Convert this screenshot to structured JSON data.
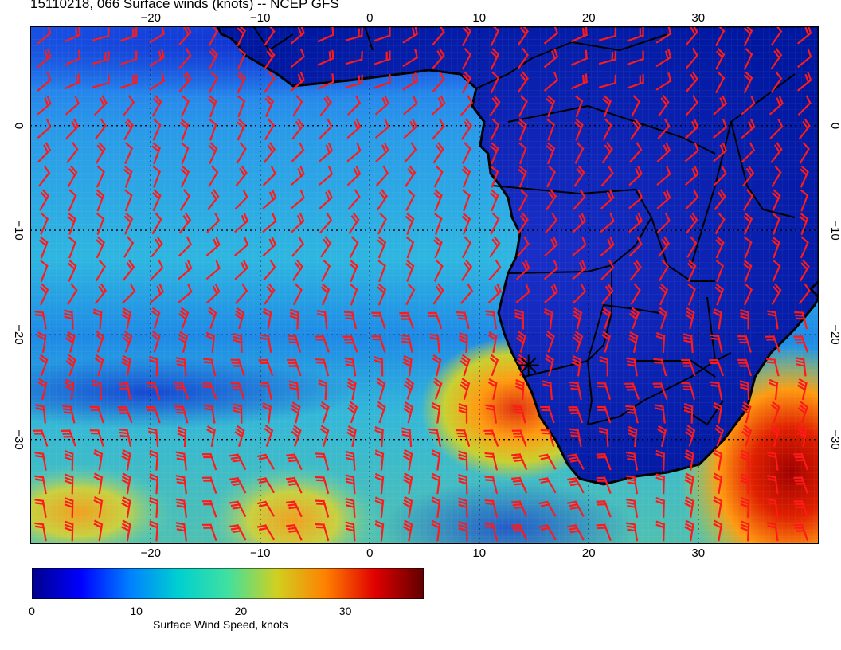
{
  "header": {
    "title": "15110218, 066 Surface winds (knots) -- NCEP GFS"
  },
  "map": {
    "region": "South Atlantic and southern Africa",
    "projection": "lat-lon",
    "lon_range": [
      -31,
      41
    ],
    "lat_range": [
      -40,
      9.5
    ],
    "lon_ticks": [
      {
        "value": -20,
        "label": "−20"
      },
      {
        "value": -10,
        "label": "−10"
      },
      {
        "value": 0,
        "label": "0"
      },
      {
        "value": 10,
        "label": "10"
      },
      {
        "value": 20,
        "label": "20"
      },
      {
        "value": 30,
        "label": "30"
      }
    ],
    "lat_ticks": [
      {
        "value": 0,
        "label": "0"
      },
      {
        "value": -10,
        "label": "−10"
      },
      {
        "value": -20,
        "label": "−20"
      },
      {
        "value": -30,
        "label": "−30"
      }
    ],
    "gridlines": "dotted, every 10 degrees",
    "wind_barb_color": "#ff1a1a",
    "coastline_color": "#000000",
    "marker": {
      "name": "station-marker",
      "lon": 14.5,
      "lat": -22.9,
      "symbol": "asterisk"
    }
  },
  "colorbar": {
    "label": "Surface Wind Speed, knots",
    "range": [
      0,
      37.5
    ],
    "ticks": [
      {
        "value": 0,
        "label": "0"
      },
      {
        "value": 10,
        "label": "10"
      },
      {
        "value": 20,
        "label": "20"
      },
      {
        "value": 30,
        "label": "30"
      }
    ],
    "colors": [
      "#00008b",
      "#0000ff",
      "#0080ff",
      "#00d0d0",
      "#40e0a0",
      "#d0d020",
      "#ff8000",
      "#e00000",
      "#600000"
    ]
  }
}
